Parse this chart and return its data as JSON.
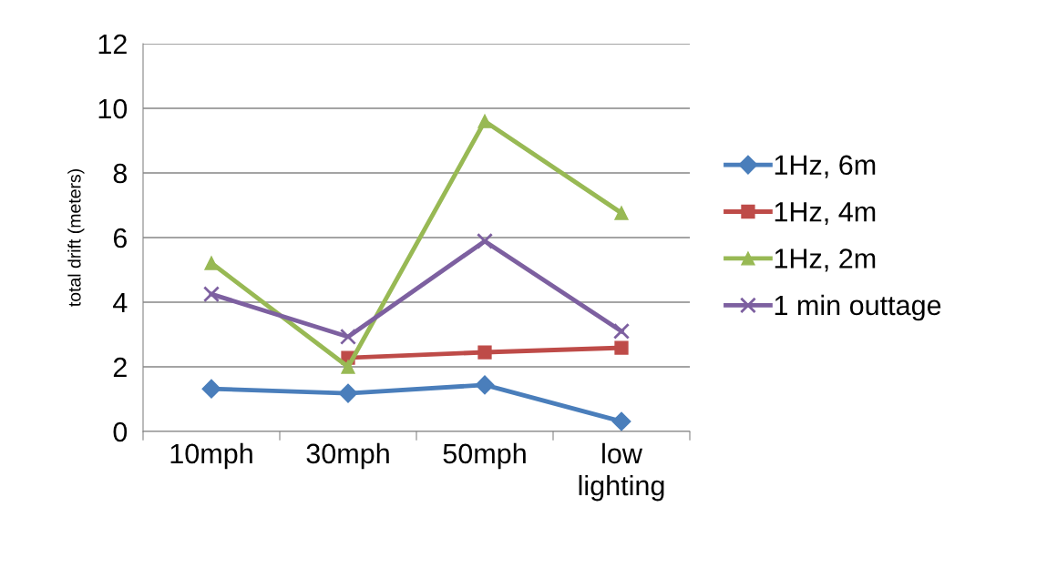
{
  "chart_data": {
    "type": "line",
    "ylabel": "total drift (meters)",
    "categories": [
      "10mph",
      "30mph",
      "50mph",
      "low lighting"
    ],
    "series": [
      {
        "name": "1Hz, 6m",
        "color": "#4a7ebb",
        "marker": "diamond",
        "values": [
          1.32,
          1.18,
          1.44,
          0.31
        ]
      },
      {
        "name": "1Hz, 4m",
        "color": "#be4b48",
        "marker": "square",
        "values": [
          null,
          2.28,
          2.45,
          2.59
        ]
      },
      {
        "name": "1Hz, 2m",
        "color": "#98b954",
        "marker": "triangle",
        "values": [
          5.21,
          2.0,
          9.6,
          6.76
        ]
      },
      {
        "name": "1 min outtage",
        "color": "#7d60a0",
        "marker": "cross",
        "values": [
          4.25,
          2.93,
          5.89,
          3.1
        ]
      }
    ],
    "ylim": [
      0,
      12
    ],
    "yticks": [
      0,
      2,
      4,
      6,
      8,
      10,
      12
    ],
    "grid": "y",
    "legend": "right",
    "line_style": "solid"
  }
}
